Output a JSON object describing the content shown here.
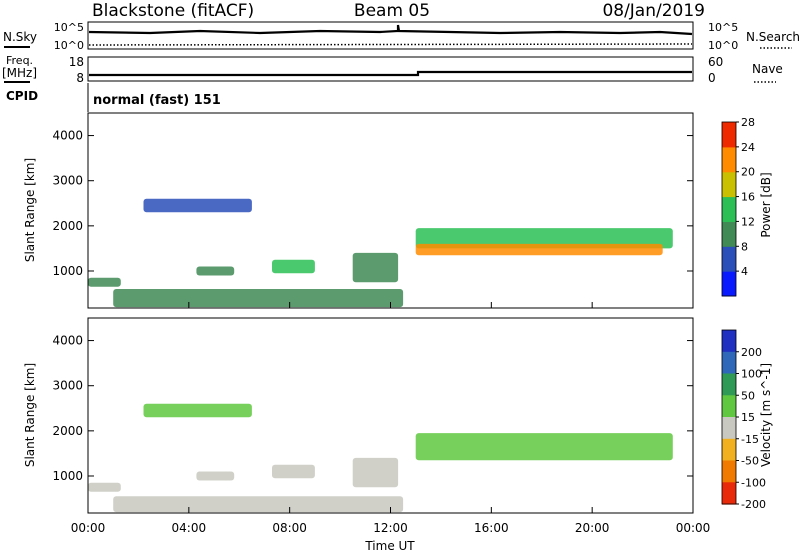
{
  "header": {
    "station": "Blackstone (fitACF)",
    "beam": "Beam 05",
    "date": "08/Jan/2019"
  },
  "status_panels": {
    "nsky_label": "N.Sky",
    "nsearch_label": "N.Search",
    "noise_ticks_left": [
      "10^5",
      "10^0"
    ],
    "noise_ticks_right": [
      "10^5",
      "10^0"
    ],
    "freq_label_top": "Freq.",
    "freq_label_unit": "[MHz]",
    "freq_ticks": [
      "18",
      "8"
    ],
    "nave_label": "Nave",
    "nave_ticks": [
      "60",
      "0"
    ],
    "cpid_label": "CPID",
    "cpid_text": "normal (fast) 151"
  },
  "chart_data": [
    {
      "type": "heatmap",
      "title": "",
      "ylabel": "Slant Range [km]",
      "xlabel": "",
      "ylim": [
        180,
        4500
      ],
      "xlim": [
        0,
        24
      ],
      "y_ticks": [
        "1000",
        "2000",
        "3000",
        "4000"
      ],
      "colorbar": {
        "label": "Power [dB]",
        "ticks": [
          "4",
          "8",
          "12",
          "16",
          "20",
          "24",
          "28"
        ],
        "colors": [
          "#0a1aff",
          "#2a4fb8",
          "#3f8a55",
          "#2bbf55",
          "#c8c000",
          "#ff8c00",
          "#ee2a00"
        ]
      },
      "regions": [
        {
          "t0": 0.0,
          "t1": 1.3,
          "r0": 650,
          "r1": 850,
          "value": 10
        },
        {
          "t0": 1.0,
          "t1": 12.5,
          "r0": 200,
          "r1": 600,
          "value": 10
        },
        {
          "t0": 2.2,
          "t1": 6.5,
          "r0": 2300,
          "r1": 2600,
          "value": 6
        },
        {
          "t0": 4.3,
          "t1": 5.8,
          "r0": 900,
          "r1": 1100,
          "value": 12
        },
        {
          "t0": 7.3,
          "t1": 9.0,
          "r0": 950,
          "r1": 1250,
          "value": 16
        },
        {
          "t0": 10.5,
          "t1": 12.3,
          "r0": 750,
          "r1": 1400,
          "value": 9
        },
        {
          "t0": 13.0,
          "t1": 23.2,
          "r0": 1500,
          "r1": 1950,
          "value": 14
        },
        {
          "t0": 13.0,
          "t1": 22.8,
          "r0": 1350,
          "r1": 1600,
          "value": 22
        }
      ]
    },
    {
      "type": "heatmap",
      "title": "",
      "ylabel": "Slant Range [km]",
      "xlabel": "Time UT",
      "ylim": [
        180,
        4500
      ],
      "xlim": [
        0,
        24
      ],
      "y_ticks": [
        "1000",
        "2000",
        "3000",
        "4000"
      ],
      "x_ticks": [
        "00:00",
        "04:00",
        "08:00",
        "12:00",
        "16:00",
        "20:00",
        "00:00"
      ],
      "colorbar": {
        "label": "Velocity [m s^-1]",
        "ticks": [
          "200",
          "100",
          "50",
          "15",
          "-15",
          "-50",
          "-100",
          "-200"
        ],
        "colors": [
          "#2030c0",
          "#2f68b8",
          "#2f9a55",
          "#60c840",
          "#c8c8c0",
          "#f0b020",
          "#f07a00",
          "#e8290a"
        ]
      },
      "regions": [
        {
          "t0": 0.0,
          "t1": 1.3,
          "r0": 650,
          "r1": 850,
          "value": -40
        },
        {
          "t0": 1.0,
          "t1": 12.5,
          "r0": 200,
          "r1": 550,
          "value": -40
        },
        {
          "t0": 2.2,
          "t1": 6.5,
          "r0": 2300,
          "r1": 2600,
          "value": 0
        },
        {
          "t0": 4.3,
          "t1": 5.8,
          "r0": 900,
          "r1": 1100,
          "value": -40
        },
        {
          "t0": 7.3,
          "t1": 9.0,
          "r0": 950,
          "r1": 1250,
          "value": -40
        },
        {
          "t0": 10.5,
          "t1": 12.3,
          "r0": 750,
          "r1": 1400,
          "value": -40
        },
        {
          "t0": 13.0,
          "t1": 23.2,
          "r0": 1350,
          "r1": 1950,
          "value": 0
        }
      ]
    }
  ]
}
